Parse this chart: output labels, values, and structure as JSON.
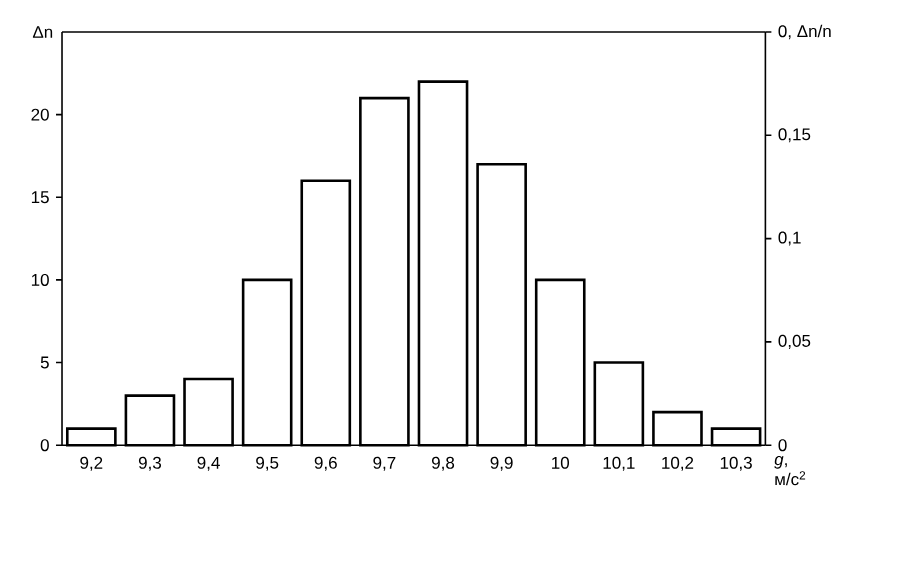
{
  "chart_data": {
    "type": "bar",
    "categories": [
      "9,2",
      "9,3",
      "9,4",
      "9,5",
      "9,6",
      "9,7",
      "9,8",
      "9,9",
      "10",
      "10,1",
      "10,2",
      "10,3"
    ],
    "values": [
      1,
      3,
      4,
      10,
      16,
      21,
      22,
      17,
      10,
      5,
      2,
      1
    ],
    "color": "#ffffff",
    "ylabel": "Δn",
    "y2label": "Δn/n",
    "xlabel": "*g*, м/с$^{2}$",
    "ylim": [
      0,
      25
    ],
    "yticks": [
      0,
      5,
      10,
      15,
      20
    ],
    "y2lim": [
      0,
      0.2
    ],
    "y2ticks": [
      {
        "value": 0,
        "label": "0"
      },
      {
        "value": 0.05,
        "label": "0,05"
      },
      {
        "value": 0.1,
        "label": "0,1"
      },
      {
        "value": 0.15,
        "label": "0,15"
      },
      {
        "value": 0.2,
        "label": "0,"
      }
    ],
    "grid": false
  }
}
